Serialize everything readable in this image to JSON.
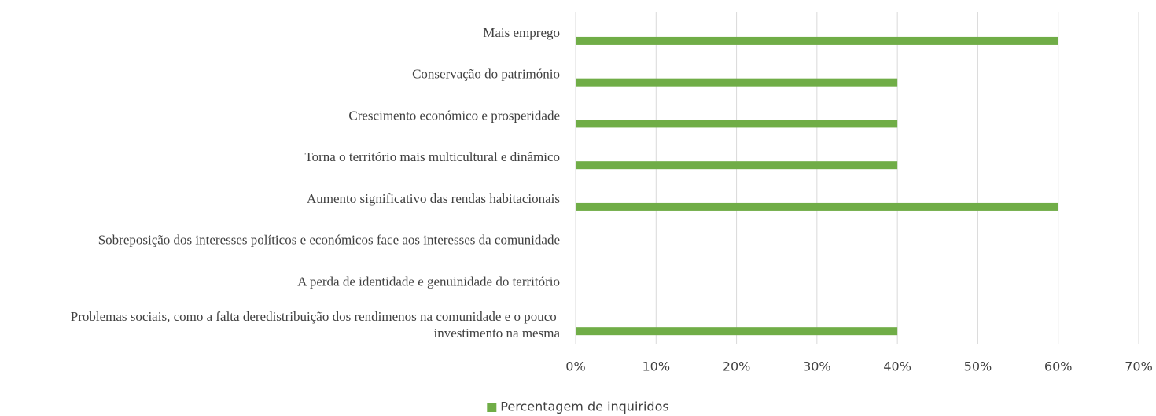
{
  "chart_data": {
    "type": "barh",
    "categories": [
      "Mais emprego",
      "Conservação do património",
      "Crescimento económico e prosperidade",
      "Torna o território mais multicultural e dinâmico",
      "Aumento significativo das rendas habitacionais",
      "Sobreposição dos interesses políticos e económicos face aos interesses da comunidade",
      "A perda de identidade e genuinidade do território",
      "Problemas sociais, como a falta deredistribuição dos rendimenos na comunidade e o pouco investimento na mesma"
    ],
    "series": [
      {
        "name": "Percentagem de inquiridos",
        "color": "#70ad47",
        "values": [
          60,
          40,
          40,
          40,
          60,
          0,
          0,
          40
        ]
      }
    ],
    "xlim": [
      0,
      70
    ],
    "xticks": [
      {
        "value": 0,
        "label": "0%"
      },
      {
        "value": 10,
        "label": "10%"
      },
      {
        "value": 20,
        "label": "20%"
      },
      {
        "value": 30,
        "label": "30%"
      },
      {
        "value": 40,
        "label": "40%"
      },
      {
        "value": 50,
        "label": "50%"
      },
      {
        "value": 60,
        "label": "60%"
      },
      {
        "value": 70,
        "label": "70%"
      }
    ],
    "grid": true,
    "legend": "bottom"
  }
}
